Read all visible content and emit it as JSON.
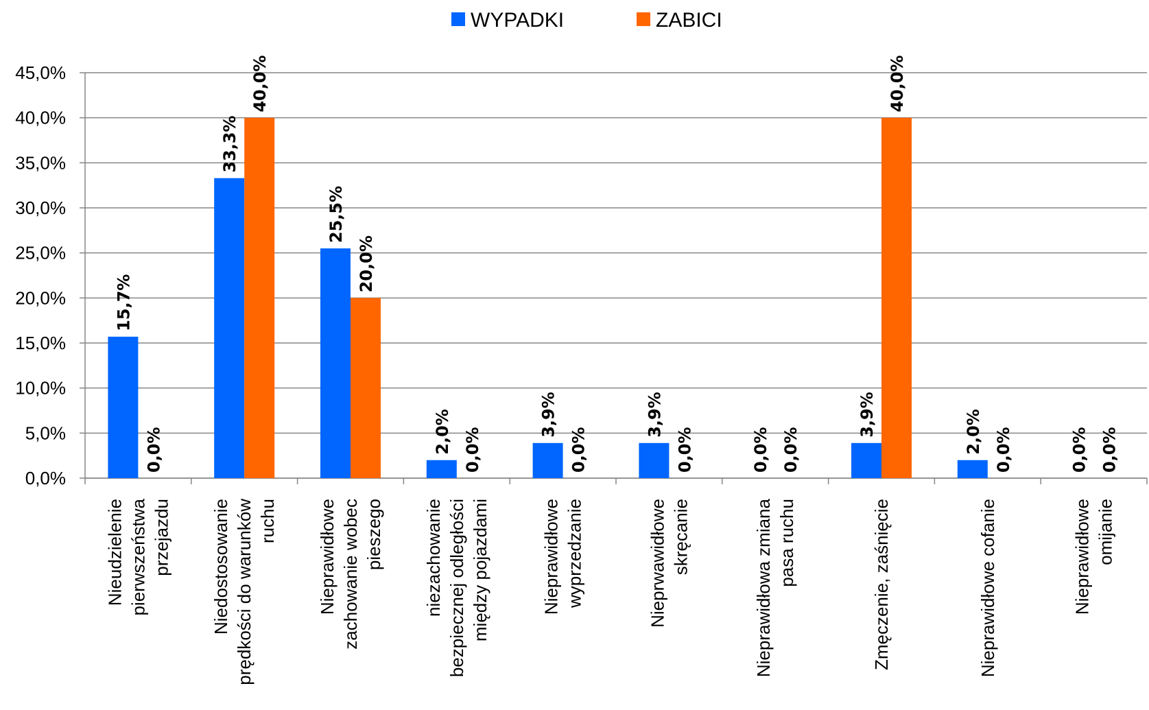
{
  "chart_data": {
    "type": "bar",
    "title": "",
    "xlabel": "",
    "ylabel": "",
    "ylim": [
      0,
      45
    ],
    "ytick_step": 5,
    "ytick_labels": [
      "0,0%",
      "5,0%",
      "10,0%",
      "15,0%",
      "20,0%",
      "25,0%",
      "30,0%",
      "35,0%",
      "40,0%",
      "45,0%"
    ],
    "grid": true,
    "legend_position": "top-center",
    "categories": [
      [
        "Nieudzielenie",
        "pierwszeństwa",
        "przejazdu"
      ],
      [
        "Niedostosowanie",
        "prędkości do warunków",
        "ruchu"
      ],
      [
        "Nieprawidłowe",
        "zachowanie wobec",
        "pieszego"
      ],
      [
        "niezachowanie",
        "bezpiecznej  odległości",
        "między pojazdami"
      ],
      [
        "Nieprawidłowe",
        "wyprzedzanie"
      ],
      [
        "Nieprwawidłowe",
        "skręcanie"
      ],
      [
        "Nieprawidłowa zmiana",
        "pasa ruchu"
      ],
      [
        "Zmęczenie,  zaśnięcie"
      ],
      [
        "Nieprawidłowe cofanie"
      ],
      [
        "Nieprawidłowe",
        "omijanie"
      ]
    ],
    "series": [
      {
        "name": "WYPADKI",
        "color": "#0066ff",
        "values": [
          15.7,
          33.3,
          25.5,
          2.0,
          3.9,
          3.9,
          0.0,
          3.9,
          2.0,
          0.0
        ],
        "labels": [
          "15,7%",
          "33,3%",
          "25,5%",
          "2,0%",
          "3,9%",
          "3,9%",
          "0,0%",
          "3,9%",
          "2,0%",
          "0,0%"
        ]
      },
      {
        "name": "ZABICI",
        "color": "#ff6600",
        "values": [
          0.0,
          40.0,
          20.0,
          0.0,
          0.0,
          0.0,
          0.0,
          40.0,
          0.0,
          0.0
        ],
        "labels": [
          "0,0%",
          "40,0%",
          "20,0%",
          "0,0%",
          "0,0%",
          "0,0%",
          "0,0%",
          "40,0%",
          "0,0%",
          "0,0%"
        ]
      }
    ]
  }
}
